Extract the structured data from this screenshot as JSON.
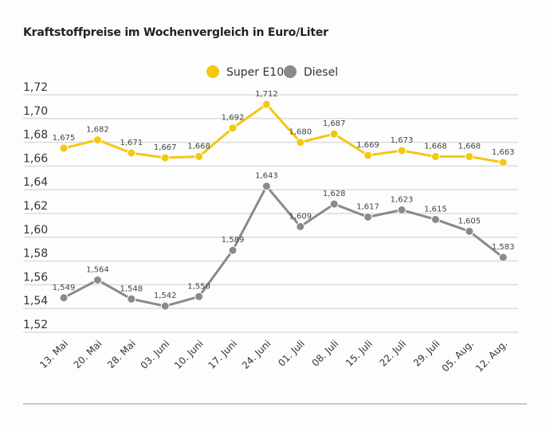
{
  "chart_data": {
    "type": "line",
    "title": "Kraftstoffpreise im Wochenvergleich in Euro/Liter",
    "xlabel": "",
    "ylabel": "",
    "ylim": [
      1.52,
      1.72
    ],
    "grid": true,
    "legend_position": "top-center",
    "yticks": [
      "1,72",
      "1,70",
      "1,68",
      "1,66",
      "1,64",
      "1,62",
      "1,60",
      "1,58",
      "1,56",
      "1,54",
      "1,52"
    ],
    "ytick_values": [
      1.72,
      1.7,
      1.68,
      1.66,
      1.64,
      1.62,
      1.6,
      1.58,
      1.56,
      1.54,
      1.52
    ],
    "categories": [
      "13. Mai",
      "20. Mai",
      "28. Mai",
      "03. Juni",
      "10. Juni",
      "17. Juni",
      "24. Juni",
      "01. Juli",
      "08. Juli",
      "15. Juli",
      "22. Juli",
      "29. Juli",
      "05. Aug.",
      "12. Aug."
    ],
    "series": [
      {
        "name": "Super E10",
        "color": "#f2c811",
        "values": [
          1.675,
          1.682,
          1.671,
          1.667,
          1.668,
          1.692,
          1.712,
          1.68,
          1.687,
          1.669,
          1.673,
          1.668,
          1.668,
          1.663
        ],
        "labels": [
          "1,675",
          "1,682",
          "1,671",
          "1,667",
          "1,668",
          "1,692",
          "1,712",
          "1,680",
          "1,687",
          "1,669",
          "1,673",
          "1,668",
          "1,668",
          "1,663"
        ]
      },
      {
        "name": "Diesel",
        "color": "#8a8a8a",
        "values": [
          1.549,
          1.564,
          1.548,
          1.542,
          1.55,
          1.589,
          1.643,
          1.609,
          1.628,
          1.617,
          1.623,
          1.615,
          1.605,
          1.583
        ],
        "labels": [
          "1,549",
          "1,564",
          "1,548",
          "1,542",
          "1,550",
          "1,589",
          "1,643",
          "1,609",
          "1,628",
          "1,617",
          "1,623",
          "1,615",
          "1,605",
          "1,583"
        ]
      }
    ]
  }
}
